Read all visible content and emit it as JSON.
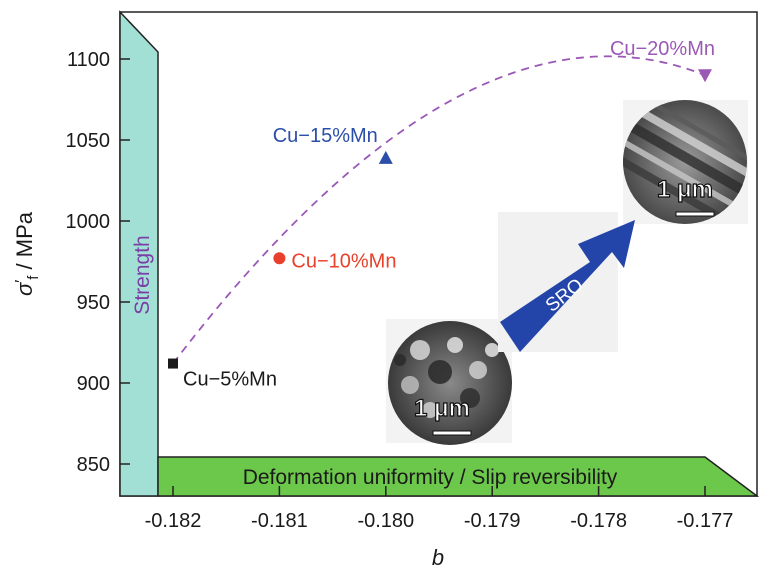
{
  "chart_data": {
    "type": "scatter",
    "title": "",
    "xlabel": "b",
    "ylabel": "σ′f / MPa",
    "ylabel_parts": {
      "symbol": "σ",
      "prime": "′",
      "subscript": "f",
      "unit": " / MPa"
    },
    "xlim": [
      -0.1825,
      -0.1765
    ],
    "ylim": [
      830,
      1130
    ],
    "xticks": [
      -0.182,
      -0.181,
      -0.18,
      -0.179,
      -0.178,
      -0.177
    ],
    "xtick_labels": [
      "-0.182",
      "-0.181",
      "-0.180",
      "-0.179",
      "-0.178",
      "-0.177"
    ],
    "yticks": [
      850,
      900,
      950,
      1000,
      1050,
      1100
    ],
    "ytick_labels": [
      "850",
      "900",
      "950",
      "1000",
      "1050",
      "1100"
    ],
    "grid": false,
    "series": [
      {
        "name": "Cu−5%Mn",
        "x": -0.182,
        "y": 912,
        "marker": "square",
        "color": "#1a1a1a",
        "label_color": "#1a1a1a"
      },
      {
        "name": "Cu−10%Mn",
        "x": -0.181,
        "y": 977,
        "marker": "circle",
        "color": "#e8402a",
        "label_color": "#e8402a"
      },
      {
        "name": "Cu−15%Mn",
        "x": -0.18,
        "y": 1039,
        "marker": "triangle-up",
        "color": "#2b4ea8",
        "label_color": "#2b4ea8"
      },
      {
        "name": "Cu−20%Mn",
        "x": -0.177,
        "y": 1090,
        "marker": "triangle-down",
        "color": "#9b59b6",
        "label_color": "#9b59b6"
      }
    ],
    "trend_line": {
      "style": "dashed",
      "color": "#9b59b6",
      "description": "concave trend through all four alloys"
    },
    "annotations": {
      "strength_band": {
        "label": "Strength",
        "fill": "#a2e0d6",
        "text_color": "#7a3fa6"
      },
      "deformation_band": {
        "label": "Deformation uniformity / Slip reversibility",
        "fill": "#6cc84a",
        "text_color": "#1a1a1a"
      },
      "arrow": {
        "label": "SRO",
        "fill": "#2344a8",
        "text_color": "#ffffff"
      },
      "micrographs": [
        {
          "name": "tem-image-low-mn",
          "scale_bar": "1 μm"
        },
        {
          "name": "tem-image-high-mn",
          "scale_bar": "1 μm"
        }
      ]
    }
  }
}
